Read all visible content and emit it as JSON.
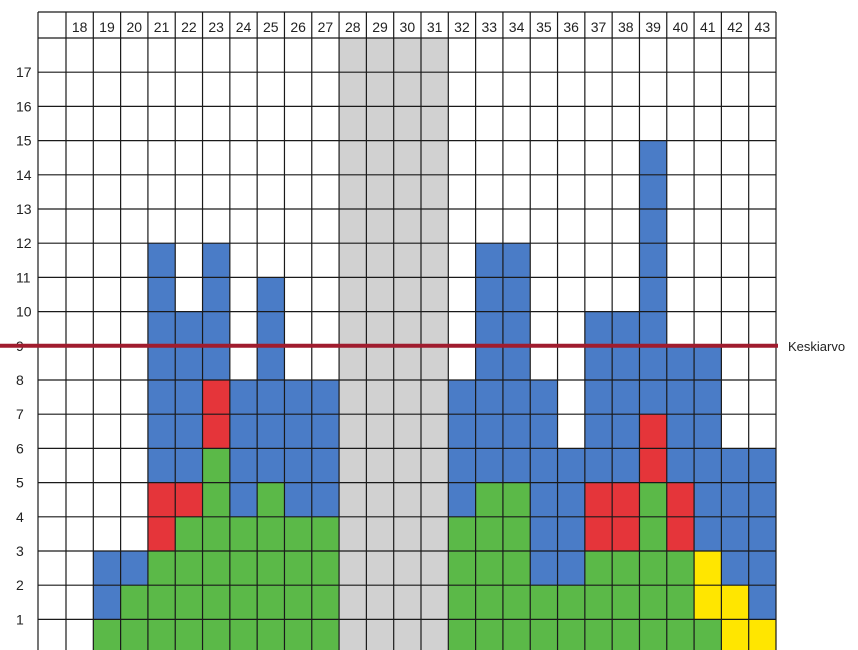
{
  "chart_data": {
    "type": "bar",
    "stacked": true,
    "categories": [
      "18",
      "19",
      "20",
      "21",
      "22",
      "23",
      "24",
      "25",
      "26",
      "27",
      "28",
      "29",
      "30",
      "31",
      "32",
      "33",
      "34",
      "35",
      "36",
      "37",
      "38",
      "39",
      "40",
      "41",
      "42",
      "43"
    ],
    "y_ticks": [
      "1",
      "2",
      "3",
      "4",
      "5",
      "6",
      "7",
      "8",
      "9",
      "10",
      "11",
      "12",
      "13",
      "14",
      "15",
      "16",
      "17"
    ],
    "ylim": [
      0,
      18
    ],
    "grid": true,
    "x_tick_position": "top",
    "shaded_categories": [
      "28",
      "29",
      "30",
      "31"
    ],
    "series": [
      {
        "color": "#5bb948",
        "values": [
          0,
          1,
          2,
          3,
          4,
          6,
          4,
          5,
          4,
          4,
          0,
          0,
          0,
          0,
          4,
          5,
          5,
          2,
          2,
          3,
          3,
          5,
          3,
          1,
          0,
          0
        ]
      },
      {
        "color": "#e5353a",
        "values": [
          0,
          0,
          0,
          2,
          1,
          2,
          0,
          0,
          0,
          0,
          0,
          0,
          0,
          0,
          0,
          0,
          0,
          0,
          0,
          2,
          2,
          2,
          2,
          0,
          0,
          0
        ]
      },
      {
        "color": "#ffe600",
        "values": [
          0,
          0,
          0,
          0,
          0,
          0,
          0,
          0,
          0,
          0,
          0,
          0,
          0,
          0,
          0,
          0,
          0,
          0,
          0,
          0,
          0,
          0,
          0,
          2,
          2,
          1
        ]
      },
      {
        "color": "#4a7cc7",
        "values": [
          0,
          2,
          1,
          7,
          5,
          4,
          4,
          6,
          4,
          4,
          0,
          0,
          0,
          0,
          4,
          7,
          7,
          6,
          4,
          5,
          5,
          8,
          4,
          6,
          4,
          5
        ]
      }
    ],
    "reference_line": {
      "value": 9,
      "label": "Keskiarvo",
      "color": "#a01c2e"
    }
  }
}
